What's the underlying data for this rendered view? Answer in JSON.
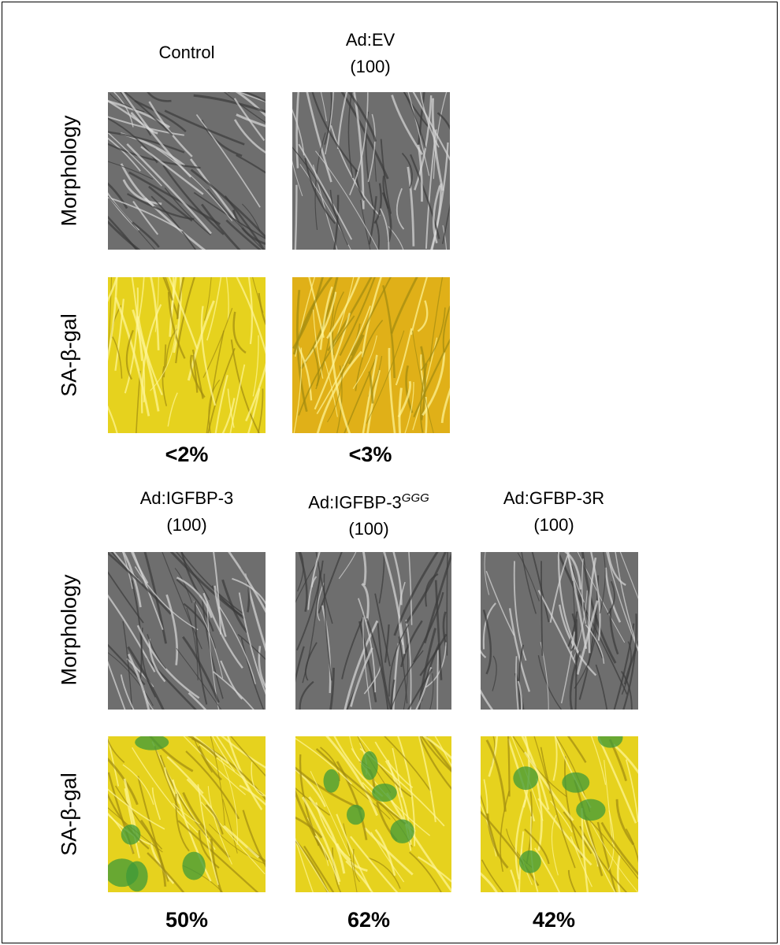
{
  "panels": [
    {
      "columns": [
        {
          "name": "Control"
        },
        {
          "name": "Ad:EV",
          "dose": "(100)"
        }
      ],
      "rows": [
        "Morphology",
        "SA-β-gal"
      ],
      "percentages": [
        "<2%",
        "<3%"
      ]
    },
    {
      "columns": [
        {
          "name": "Ad:IGFBP-3",
          "dose": "(100)"
        },
        {
          "name": "Ad:IGFBP-3",
          "superscript": "GGG",
          "dose": "(100)"
        },
        {
          "name": "Ad:GFBP-3R",
          "dose": "(100)"
        }
      ],
      "rows": [
        "Morphology",
        "SA-β-gal"
      ],
      "percentages": [
        "50%",
        "62%",
        "42%"
      ]
    }
  ]
}
